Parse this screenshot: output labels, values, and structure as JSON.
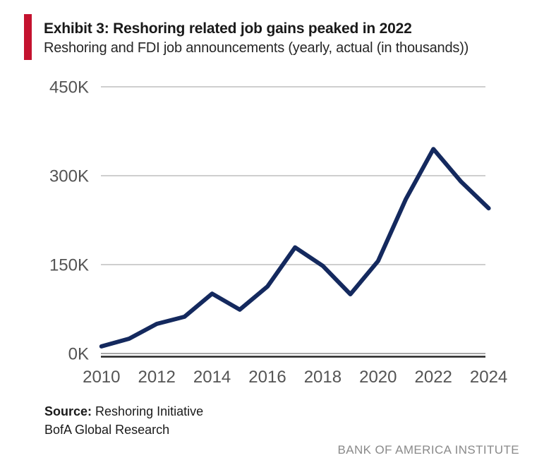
{
  "header": {
    "title": "Exhibit 3: Reshoring related job gains peaked in 2022",
    "subtitle": "Reshoring and FDI job announcements (yearly, actual (in thousands))"
  },
  "chart_data": {
    "type": "line",
    "title": "Exhibit 3: Reshoring related job gains peaked in 2022",
    "subtitle": "Reshoring and FDI job announcements (yearly, actual (in thousands))",
    "x": [
      2010,
      2011,
      2012,
      2013,
      2014,
      2015,
      2016,
      2017,
      2018,
      2019,
      2020,
      2021,
      2022,
      2023,
      2024
    ],
    "series": [
      {
        "name": "Reshoring and FDI job announcements (thousands)",
        "values": [
          12,
          25,
          50,
          62,
          101,
          74,
          113,
          179,
          148,
          100,
          156,
          260,
          345,
          290,
          245
        ]
      }
    ],
    "values_unit": "thousands of jobs",
    "ylim": [
      0,
      450
    ],
    "yticks": [
      0,
      150,
      300,
      450
    ],
    "ytick_labels": [
      "0K",
      "150K",
      "300K",
      "450K"
    ],
    "xticks": [
      2010,
      2012,
      2014,
      2016,
      2018,
      2020,
      2022,
      2024
    ],
    "xtick_labels": [
      "2010",
      "2012",
      "2014",
      "2016",
      "2018",
      "2020",
      "2022",
      "2024"
    ],
    "grid": "horizontal",
    "legend": "none"
  },
  "colors": {
    "accent_bar": "#C4122F",
    "line": "#14295E",
    "gridline": "#C8C8C8",
    "zero_gridline": "#8C8C8C",
    "axis_line": "#262626",
    "tick_label": "#545454",
    "institute_text": "#8A8A8A"
  },
  "footer": {
    "source_label": "Source:",
    "source_value": "Reshoring Initiative",
    "source_line2": "BofA Global Research",
    "institute": "BANK OF AMERICA INSTITUTE"
  }
}
